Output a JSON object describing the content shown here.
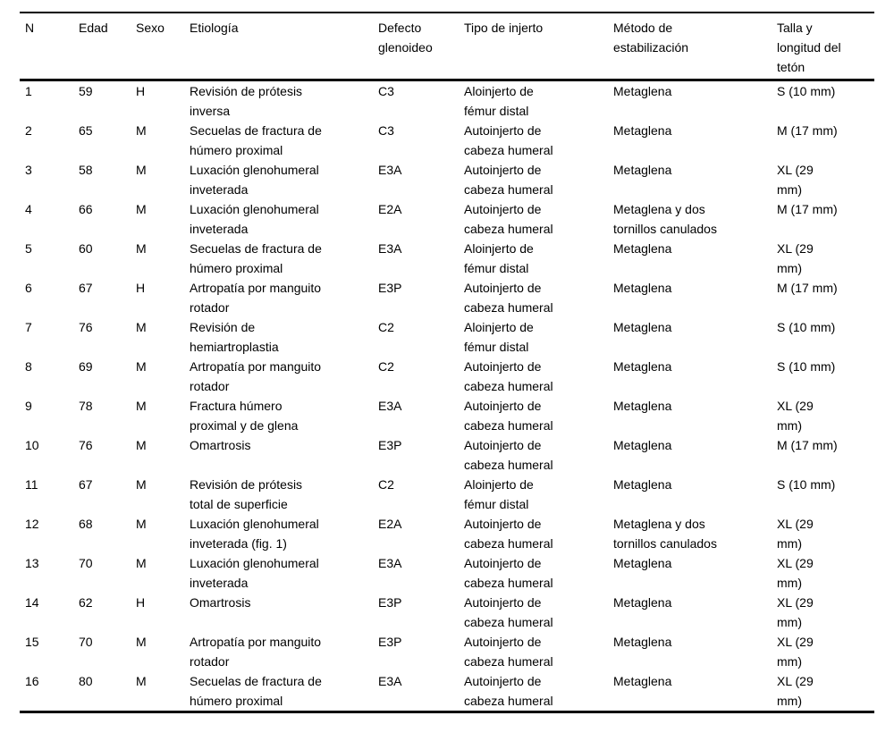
{
  "colors": {
    "background": "#ffffff",
    "text": "#000000",
    "rule": "#000000"
  },
  "table": {
    "columns": [
      {
        "key": "n",
        "label": "N"
      },
      {
        "key": "edad",
        "label": "Edad"
      },
      {
        "key": "sexo",
        "label": "Sexo"
      },
      {
        "key": "etiologia",
        "label": "Etiología"
      },
      {
        "key": "defecto",
        "label": "Defecto\nglenoideo"
      },
      {
        "key": "tipo",
        "label": "Tipo de injerto"
      },
      {
        "key": "metodo",
        "label": "Método de\nestabilización"
      },
      {
        "key": "talla",
        "label": "Talla y\nlongitud del\ntetón"
      }
    ],
    "rows": [
      [
        "1",
        "59",
        "H",
        "Revisión de prótesis\ninversa",
        "C3",
        "Aloinjerto de\nfémur distal",
        "Metaglena",
        "S (10 mm)"
      ],
      [
        "2",
        "65",
        "M",
        "Secuelas de fractura de\nhúmero proximal",
        "C3",
        "Autoinjerto de\ncabeza humeral",
        "Metaglena",
        "M (17 mm)"
      ],
      [
        "3",
        "58",
        "M",
        "Luxación glenohumeral\ninveterada",
        "E3A",
        "Autoinjerto de\ncabeza humeral",
        "Metaglena",
        "XL (29\nmm)"
      ],
      [
        "4",
        "66",
        "M",
        "Luxación glenohumeral\ninveterada",
        "E2A",
        "Autoinjerto de\ncabeza humeral",
        "Metaglena y dos\ntornillos canulados",
        "M (17 mm)"
      ],
      [
        "5",
        "60",
        "M",
        "Secuelas de fractura de\nhúmero proximal",
        "E3A",
        "Aloinjerto de\nfémur distal",
        "Metaglena",
        "XL (29\nmm)"
      ],
      [
        "6",
        "67",
        "H",
        "Artropatía por manguito\nrotador",
        "E3P",
        "Autoinjerto de\ncabeza humeral",
        "Metaglena",
        "M (17 mm)"
      ],
      [
        "7",
        "76",
        "M",
        "Revisión de\nhemiartroplastia",
        "C2",
        "Aloinjerto de\nfémur distal",
        "Metaglena",
        "S (10 mm)"
      ],
      [
        "8",
        "69",
        "M",
        "Artropatía por manguito\nrotador",
        "C2",
        "Autoinjerto de\ncabeza humeral",
        "Metaglena",
        "S (10 mm)"
      ],
      [
        "9",
        "78",
        "M",
        "Fractura húmero\nproximal y de glena",
        "E3A",
        "Autoinjerto de\ncabeza humeral",
        "Metaglena",
        "XL (29\nmm)"
      ],
      [
        "10",
        "76",
        "M",
        "Omartrosis",
        "E3P",
        "Autoinjerto de\ncabeza humeral",
        "Metaglena",
        "M (17 mm)"
      ],
      [
        "11",
        "67",
        "M",
        "Revisión de prótesis\ntotal de superficie",
        "C2",
        "Aloinjerto de\nfémur distal",
        "Metaglena",
        "S (10 mm)"
      ],
      [
        "12",
        "68",
        "M",
        "Luxación glenohumeral\ninveterada (fig. 1)",
        "E2A",
        "Autoinjerto de\ncabeza humeral",
        "Metaglena y dos\ntornillos canulados",
        "XL (29\nmm)"
      ],
      [
        "13",
        "70",
        "M",
        "Luxación glenohumeral\ninveterada",
        "E3A",
        "Autoinjerto de\ncabeza humeral",
        "Metaglena",
        "XL (29\nmm)"
      ],
      [
        "14",
        "62",
        "H",
        "Omartrosis",
        "E3P",
        "Autoinjerto de\ncabeza humeral",
        "Metaglena",
        "XL (29\nmm)"
      ],
      [
        "15",
        "70",
        "M",
        "Artropatía por manguito\nrotador",
        "E3P",
        "Autoinjerto de\ncabeza humeral",
        "Metaglena",
        "XL (29\nmm)"
      ],
      [
        "16",
        "80",
        "M",
        "Secuelas de fractura de\nhúmero proximal",
        "E3A",
        "Autoinjerto de\ncabeza humeral",
        "Metaglena",
        "XL (29\nmm)"
      ]
    ]
  }
}
